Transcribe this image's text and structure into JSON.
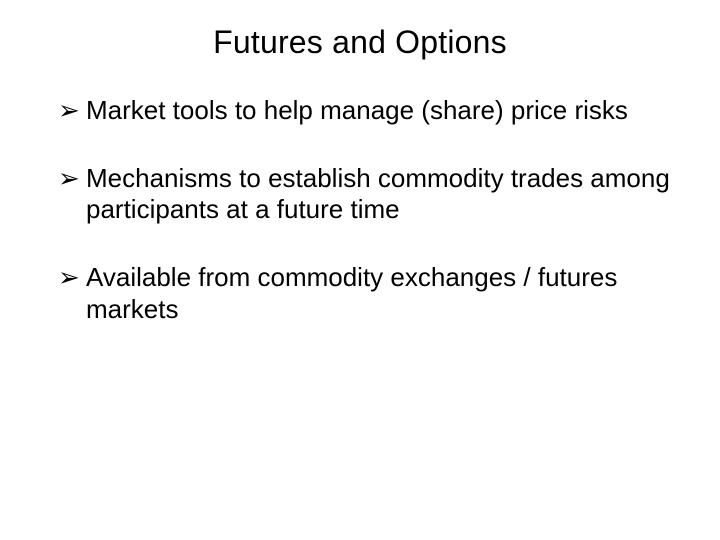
{
  "slide": {
    "title": "Futures and Options",
    "bullet_marker": "➢",
    "bullets": [
      "Market tools to help manage (share) price risks",
      "Mechanisms to establish commodity trades among participants at a future time",
      "Available from commodity exchanges / futures markets"
    ],
    "colors": {
      "background": "#ffffff",
      "text": "#000000"
    },
    "typography": {
      "title_fontsize": 32,
      "bullet_fontsize": 26,
      "font_family": "Arial"
    }
  }
}
